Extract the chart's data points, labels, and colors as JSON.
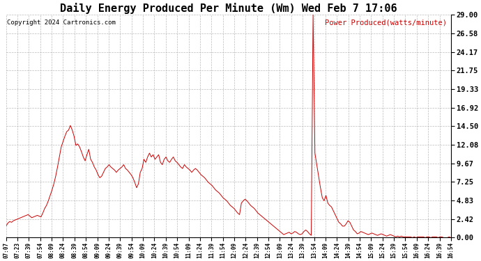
{
  "title": "Daily Energy Produced Per Minute (Wm) Wed Feb 7 17:06",
  "copyright": "Copyright 2024 Cartronics.com",
  "legend_label": "Power Produced(watts/minute)",
  "line_color": "#cc0000",
  "legend_color": "#cc0000",
  "background_color": "#ffffff",
  "grid_color": "#aaaaaa",
  "title_fontsize": 11,
  "yticks": [
    0.0,
    2.42,
    4.83,
    7.25,
    9.67,
    12.08,
    14.5,
    16.92,
    19.33,
    21.75,
    24.17,
    26.58,
    29.0
  ],
  "ymax": 29.0,
  "ymin": 0.0,
  "xtick_labels": [
    "07:07",
    "07:23",
    "07:39",
    "07:54",
    "08:09",
    "08:24",
    "08:39",
    "08:54",
    "09:09",
    "09:24",
    "09:39",
    "09:54",
    "10:09",
    "10:24",
    "10:39",
    "10:54",
    "11:09",
    "11:24",
    "11:39",
    "11:54",
    "12:09",
    "12:24",
    "12:39",
    "12:54",
    "13:09",
    "13:24",
    "13:39",
    "13:54",
    "14:09",
    "14:24",
    "14:39",
    "14:54",
    "15:09",
    "15:24",
    "15:39",
    "15:54",
    "16:09",
    "16:24",
    "16:39",
    "16:54"
  ],
  "series": [
    1.5,
    1.9,
    2.1,
    2.0,
    2.2,
    2.3,
    2.4,
    2.5,
    2.6,
    2.7,
    2.8,
    2.9,
    3.0,
    2.8,
    2.6,
    2.7,
    2.8,
    2.9,
    2.8,
    2.7,
    3.2,
    3.8,
    4.2,
    4.8,
    5.5,
    6.2,
    7.0,
    8.0,
    9.2,
    10.5,
    11.8,
    12.5,
    13.2,
    13.8,
    14.0,
    14.6,
    14.0,
    13.2,
    12.0,
    12.2,
    11.8,
    11.2,
    10.5,
    10.0,
    10.8,
    11.5,
    10.2,
    9.8,
    9.2,
    8.8,
    8.2,
    7.8,
    8.0,
    8.5,
    9.0,
    9.2,
    9.5,
    9.2,
    9.0,
    8.8,
    8.5,
    8.8,
    9.0,
    9.2,
    9.5,
    9.0,
    8.8,
    8.5,
    8.2,
    7.8,
    7.2,
    6.5,
    7.0,
    8.5,
    9.0,
    10.2,
    9.8,
    10.5,
    11.0,
    10.5,
    10.8,
    10.2,
    10.5,
    10.8,
    9.8,
    9.5,
    10.2,
    10.5,
    10.0,
    9.8,
    10.2,
    10.5,
    10.0,
    9.8,
    9.5,
    9.2,
    9.0,
    9.5,
    9.2,
    9.0,
    8.8,
    8.5,
    8.8,
    9.0,
    8.8,
    8.5,
    8.2,
    8.0,
    7.8,
    7.5,
    7.2,
    7.0,
    6.8,
    6.5,
    6.2,
    6.0,
    5.8,
    5.5,
    5.2,
    5.0,
    4.8,
    4.5,
    4.2,
    4.0,
    3.8,
    3.5,
    3.2,
    3.0,
    4.5,
    4.8,
    5.0,
    4.8,
    4.5,
    4.2,
    4.0,
    3.8,
    3.5,
    3.2,
    3.0,
    2.8,
    2.6,
    2.4,
    2.2,
    2.0,
    1.8,
    1.6,
    1.4,
    1.2,
    1.0,
    0.8,
    0.6,
    0.4,
    0.5,
    0.6,
    0.7,
    0.5,
    0.6,
    0.8,
    0.7,
    0.5,
    0.4,
    0.5,
    0.8,
    1.0,
    0.8,
    0.5,
    0.3,
    29.0,
    11.0,
    9.5,
    8.0,
    6.5,
    5.2,
    4.8,
    5.5,
    4.5,
    4.2,
    4.0,
    3.5,
    3.0,
    2.5,
    2.0,
    1.8,
    1.5,
    1.5,
    1.8,
    2.2,
    2.0,
    1.5,
    1.0,
    0.8,
    0.5,
    0.6,
    0.8,
    0.7,
    0.6,
    0.5,
    0.4,
    0.5,
    0.6,
    0.5,
    0.4,
    0.3,
    0.4,
    0.5,
    0.4,
    0.3,
    0.2,
    0.3,
    0.4,
    0.3,
    0.2,
    0.1,
    0.2,
    0.1,
    0.2,
    0.1,
    0.1,
    0.1,
    0.1,
    0.1,
    0.0,
    0.1,
    0.0,
    0.1,
    0.1,
    0.1,
    0.1,
    0.0,
    0.1,
    0.1,
    0.0,
    0.1,
    0.1,
    0.1,
    0.0,
    0.1,
    0.1,
    0.0,
    0.0,
    0.0,
    0.1,
    0.0
  ]
}
